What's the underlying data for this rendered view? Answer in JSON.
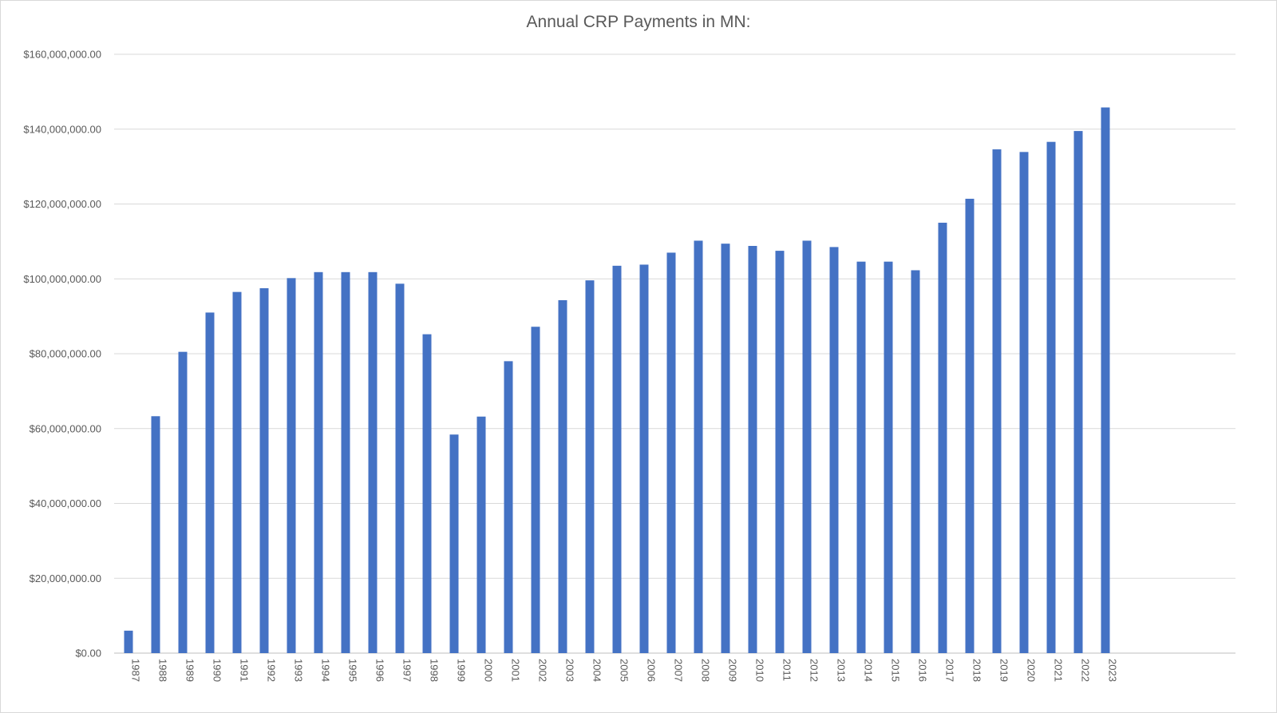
{
  "chart_data": {
    "type": "bar",
    "title": "Annual CRP Payments in MN:",
    "xlabel": "",
    "ylabel": "",
    "ylim": [
      0,
      160000000
    ],
    "y_ticks": [
      {
        "value": 0,
        "label": "$0.00"
      },
      {
        "value": 20000000,
        "label": "$20,000,000.00"
      },
      {
        "value": 40000000,
        "label": "$40,000,000.00"
      },
      {
        "value": 60000000,
        "label": "$60,000,000.00"
      },
      {
        "value": 80000000,
        "label": "$80,000,000.00"
      },
      {
        "value": 100000000,
        "label": "$100,000,000.00"
      },
      {
        "value": 120000000,
        "label": "$120,000,000.00"
      },
      {
        "value": 140000000,
        "label": "$140,000,000.00"
      },
      {
        "value": 160000000,
        "label": "$160,000,000.00"
      }
    ],
    "grid": true,
    "legend": "none",
    "bar_color": "#4472c4",
    "categories": [
      "1987",
      "1988",
      "1989",
      "1990",
      "1991",
      "1992",
      "1993",
      "1994",
      "1995",
      "1996",
      "1997",
      "1998",
      "1999",
      "2000",
      "2001",
      "2002",
      "2003",
      "2004",
      "2005",
      "2006",
      "2007",
      "2008",
      "2009",
      "2010",
      "2011",
      "2012",
      "2013",
      "2014",
      "2015",
      "2016",
      "2017",
      "2018",
      "2019",
      "2020",
      "2021",
      "2022",
      "2023"
    ],
    "values": [
      6000000,
      63300000,
      80500000,
      91000000,
      96500000,
      97500000,
      100200000,
      101800000,
      101800000,
      101800000,
      98700000,
      85200000,
      58400000,
      63200000,
      78000000,
      87200000,
      94300000,
      99600000,
      103500000,
      103800000,
      107000000,
      110200000,
      109400000,
      108800000,
      107500000,
      110200000,
      108500000,
      104600000,
      104600000,
      102300000,
      115000000,
      121400000,
      134600000,
      133900000,
      136600000,
      139500000,
      145800000
    ]
  }
}
